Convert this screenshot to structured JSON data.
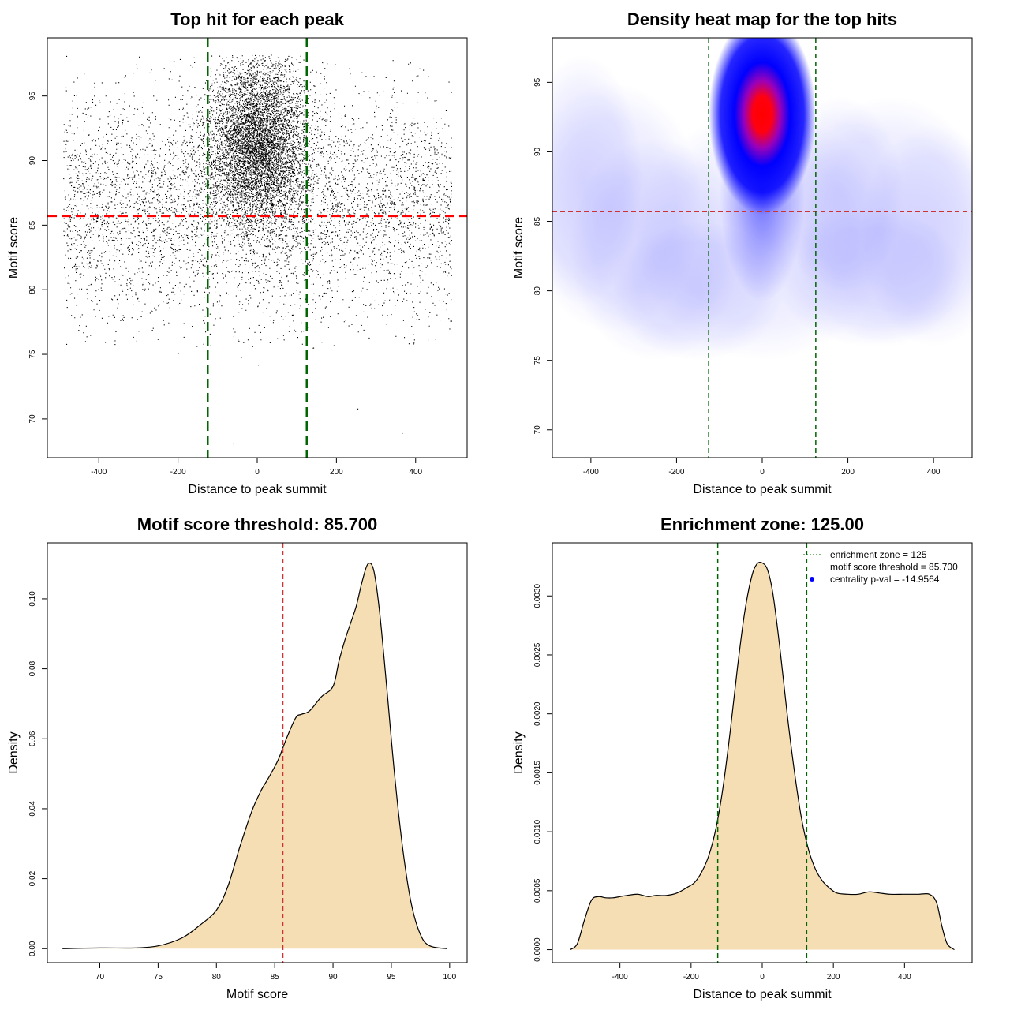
{
  "chart_data": [
    {
      "id": "scatter",
      "type": "scatter",
      "title": "Top hit for each peak",
      "xlabel": "Distance to peak summit",
      "ylabel": "Motif score",
      "xlim": [
        -530,
        530
      ],
      "ylim": [
        67,
        99.5
      ],
      "xticks": [
        -400,
        -200,
        0,
        200,
        400
      ],
      "yticks": [
        70,
        75,
        80,
        85,
        90,
        95
      ],
      "x_range": [
        -490,
        490
      ],
      "y_range": [
        68,
        98.2
      ],
      "dense_center": {
        "x": 0,
        "y": 92.3
      },
      "point_count_estimate": 17000,
      "hlines": [
        {
          "y": 85.7,
          "color": "#ff0000",
          "dash": "long"
        }
      ],
      "vlines": [
        {
          "x": -125,
          "color": "#006400",
          "dash": "long"
        },
        {
          "x": 125,
          "color": "#006400",
          "dash": "long"
        }
      ]
    },
    {
      "id": "heatmap",
      "type": "heatmap",
      "title": "Density heat map for the top hits",
      "xlabel": "Distance to peak summit",
      "ylabel": "Motif score",
      "xlim": [
        -490,
        490
      ],
      "ylim": [
        68,
        98.2
      ],
      "xticks": [
        -400,
        -200,
        0,
        200,
        400
      ],
      "yticks": [
        70,
        75,
        80,
        85,
        90,
        95
      ],
      "peak": {
        "x": 0,
        "y": 92.7
      },
      "colors": [
        "#ffffff",
        "#0000ff",
        "#ff0000"
      ],
      "hlines": [
        {
          "y": 85.7,
          "color": "#cd3333",
          "dash": "short"
        }
      ],
      "vlines": [
        {
          "x": -125,
          "color": "#006400",
          "dash": "short"
        },
        {
          "x": 125,
          "color": "#006400",
          "dash": "short"
        }
      ]
    },
    {
      "id": "score_density",
      "type": "area",
      "title": "Motif score threshold: 85.700",
      "xlabel": "Motif score",
      "ylabel": "Density",
      "xlim": [
        65.5,
        101.5
      ],
      "ylim": [
        -0.004,
        0.116
      ],
      "xticks": [
        70,
        75,
        80,
        85,
        90,
        95,
        100
      ],
      "yticks": [
        0.0,
        0.02,
        0.04,
        0.06,
        0.08,
        0.1
      ],
      "ytick_labels": [
        "0.00",
        "0.02",
        "0.04",
        "0.06",
        "0.08",
        "0.10"
      ],
      "fill": "#f5deb3",
      "x": [
        66.8,
        70,
        73,
        75,
        77,
        78.5,
        80,
        81,
        82,
        83,
        83.8,
        84.5,
        85.3,
        86,
        86.8,
        87.3,
        88,
        89,
        90,
        90.5,
        91,
        91.5,
        92,
        92.5,
        93,
        93.5,
        94,
        94.6,
        95.3,
        96,
        96.7,
        97.5,
        98.3,
        99.8
      ],
      "y": [
        0,
        0.0002,
        0.0002,
        0.0008,
        0.003,
        0.0065,
        0.011,
        0.018,
        0.029,
        0.039,
        0.045,
        0.049,
        0.054,
        0.06,
        0.066,
        0.067,
        0.068,
        0.072,
        0.075,
        0.082,
        0.088,
        0.093,
        0.098,
        0.105,
        0.11,
        0.108,
        0.096,
        0.075,
        0.049,
        0.028,
        0.013,
        0.004,
        0.0008,
        0
      ],
      "vlines": [
        {
          "x": 85.7,
          "color": "#cd3333",
          "dash": "short"
        }
      ]
    },
    {
      "id": "distance_density",
      "type": "area",
      "title": "Enrichment zone: 125.00",
      "xlabel": "Distance to peak summit",
      "ylabel": "Density",
      "xlim": [
        -590,
        590
      ],
      "ylim": [
        -0.00011,
        0.00345
      ],
      "xticks": [
        -400,
        -200,
        0,
        200,
        400
      ],
      "yticks": [
        0,
        0.0005,
        0.001,
        0.0015,
        0.002,
        0.0025,
        0.003
      ],
      "ytick_labels": [
        "0.0000",
        "0.0005",
        "0.0010",
        "0.0015",
        "0.0020",
        "0.0025",
        "0.0030"
      ],
      "fill": "#f5deb3",
      "x": [
        -540,
        -520,
        -500,
        -480,
        -460,
        -440,
        -420,
        -400,
        -380,
        -350,
        -320,
        -300,
        -270,
        -240,
        -210,
        -190,
        -170,
        -150,
        -130,
        -110,
        -90,
        -70,
        -50,
        -30,
        -15,
        0,
        15,
        30,
        50,
        70,
        90,
        110,
        130,
        150,
        170,
        190,
        210,
        240,
        270,
        300,
        330,
        360,
        400,
        440,
        470,
        490,
        505,
        520,
        540
      ],
      "y": [
        0,
        5e-05,
        0.00025,
        0.00042,
        0.00045,
        0.00044,
        0.00044,
        0.00045,
        0.00046,
        0.00047,
        0.00045,
        0.00046,
        0.00046,
        0.00048,
        0.00053,
        0.00057,
        0.00066,
        0.0008,
        0.00103,
        0.00138,
        0.00185,
        0.00238,
        0.00285,
        0.00316,
        0.00327,
        0.00328,
        0.00322,
        0.00302,
        0.00255,
        0.002,
        0.00152,
        0.00112,
        0.00085,
        0.00068,
        0.00058,
        0.00052,
        0.00048,
        0.00047,
        0.00047,
        0.00049,
        0.00048,
        0.00047,
        0.00047,
        0.00047,
        0.00047,
        0.0004,
        0.0002,
        5e-05,
        0
      ],
      "vlines": [
        {
          "x": -125,
          "color": "#006400",
          "dash": "short"
        },
        {
          "x": 125,
          "color": "#006400",
          "dash": "short"
        }
      ],
      "legend": [
        {
          "label": "enrichment zone = 125",
          "kind": "line",
          "color": "#006400"
        },
        {
          "label": "motif score threshold = 85.700",
          "kind": "line",
          "color": "#cd3333"
        },
        {
          "label": "centrality p-val = -14.9564",
          "kind": "point",
          "color": "#0000ff"
        }
      ]
    }
  ]
}
